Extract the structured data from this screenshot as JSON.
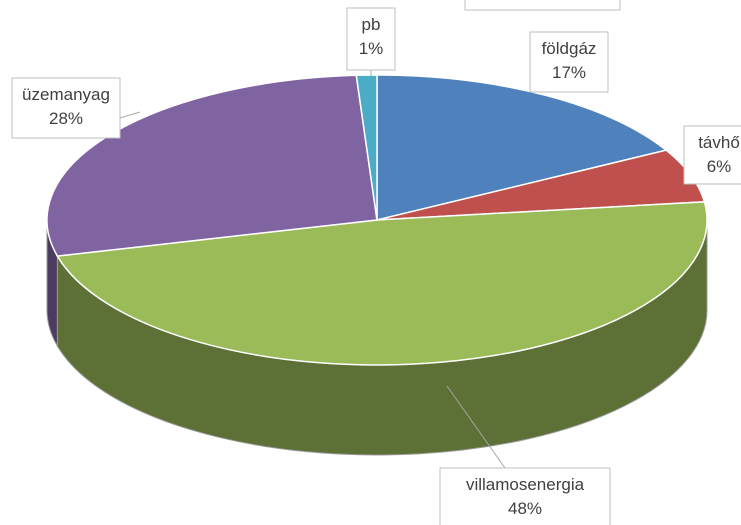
{
  "chart_data": {
    "type": "pie",
    "categories": [
      "földgáz",
      "távhő",
      "villamosenergia",
      "üzemanyag",
      "pb"
    ],
    "values": [
      17,
      6,
      48,
      28,
      1
    ],
    "value_labels": [
      "17%",
      "6%",
      "48%",
      "28%",
      "1%"
    ],
    "colors": [
      "#4f81bd",
      "#c0504d",
      "#9bbb59",
      "#8064a2",
      "#4bacc6"
    ]
  }
}
